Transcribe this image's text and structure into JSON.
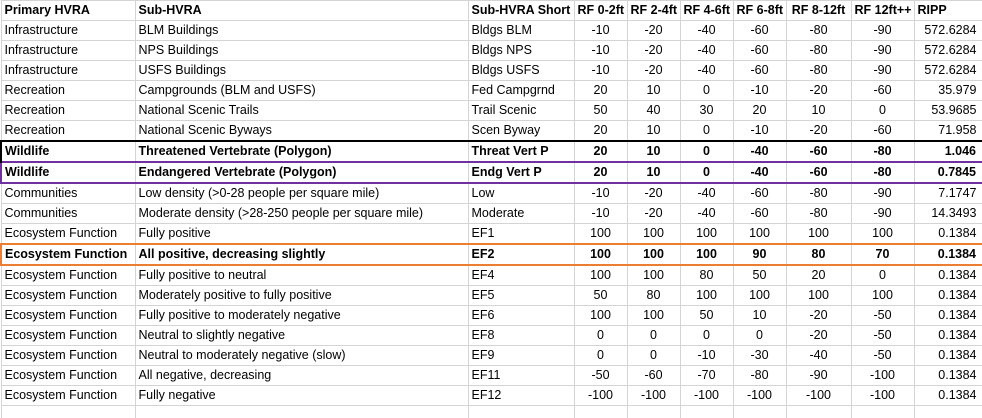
{
  "colors": {
    "gridline": "#d4d4d4",
    "box_black": "#000000",
    "box_purple": "#7030a0",
    "box_orange": "#ed7d31"
  },
  "headers": [
    "Primary HVRA",
    "Sub-HVRA",
    "Sub-HVRA Short",
    "RF 0-2ft",
    "RF 2-4ft",
    "RF 4-6ft",
    "RF 6-8ft",
    "RF 8-12ft",
    "RF 12ft++",
    "RIPP"
  ],
  "rows": [
    [
      "Infrastructure",
      "BLM Buildings",
      "Bldgs BLM",
      "-10",
      "-20",
      "-40",
      "-60",
      "-80",
      "-90",
      "572.6284"
    ],
    [
      "Infrastructure",
      "NPS Buildings",
      "Bldgs NPS",
      "-10",
      "-20",
      "-40",
      "-60",
      "-80",
      "-90",
      "572.6284"
    ],
    [
      "Infrastructure",
      "USFS Buildings",
      "Bldgs USFS",
      "-10",
      "-20",
      "-40",
      "-60",
      "-80",
      "-90",
      "572.6284"
    ],
    [
      "Recreation",
      "Campgrounds (BLM and USFS)",
      "Fed Campgrnd",
      "20",
      "10",
      "0",
      "-10",
      "-20",
      "-60",
      "35.979"
    ],
    [
      "Recreation",
      "National Scenic Trails",
      "Trail Scenic",
      "50",
      "40",
      "30",
      "20",
      "10",
      "0",
      "53.9685"
    ],
    [
      "Recreation",
      "National Scenic Byways",
      "Scen Byway",
      "20",
      "10",
      "0",
      "-10",
      "-20",
      "-60",
      "71.958"
    ],
    [
      "Wildlife",
      "Threatened Vertebrate (Polygon)",
      "Threat Vert P",
      "20",
      "10",
      "0",
      "-40",
      "-60",
      "-80",
      "1.046"
    ],
    [
      "Wildlife",
      "Endangered Vertebrate (Polygon)",
      "Endg Vert P",
      "20",
      "10",
      "0",
      "-40",
      "-60",
      "-80",
      "0.7845"
    ],
    [
      "Communities",
      "Low density (>0-28 people per square mile)",
      "Low",
      "-10",
      "-20",
      "-40",
      "-60",
      "-80",
      "-90",
      "7.1747"
    ],
    [
      "Communities",
      "Moderate density (>28-250 people per square mile)",
      "Moderate",
      "-10",
      "-20",
      "-40",
      "-60",
      "-80",
      "-90",
      "14.3493"
    ],
    [
      "Ecosystem Function",
      "Fully positive",
      "EF1",
      "100",
      "100",
      "100",
      "100",
      "100",
      "100",
      "0.1384"
    ],
    [
      "Ecosystem Function",
      "All positive, decreasing slightly",
      "EF2",
      "100",
      "100",
      "100",
      "90",
      "80",
      "70",
      "0.1384"
    ],
    [
      "Ecosystem Function",
      "Fully positive to neutral",
      "EF4",
      "100",
      "100",
      "80",
      "50",
      "20",
      "0",
      "0.1384"
    ],
    [
      "Ecosystem Function",
      "Moderately positive  to fully positive",
      "EF5",
      "50",
      "80",
      "100",
      "100",
      "100",
      "100",
      "0.1384"
    ],
    [
      "Ecosystem Function",
      "Fully positive to moderately negative",
      "EF6",
      "100",
      "100",
      "50",
      "10",
      "-20",
      "-50",
      "0.1384"
    ],
    [
      "Ecosystem Function",
      "Neutral to slightly negative",
      "EF8",
      "0",
      "0",
      "0",
      "0",
      "-20",
      "-50",
      "0.1384"
    ],
    [
      "Ecosystem Function",
      "Neutral to moderately negative (slow)",
      "EF9",
      "0",
      "0",
      "-10",
      "-30",
      "-40",
      "-50",
      "0.1384"
    ],
    [
      "Ecosystem Function",
      "All negative, decreasing",
      "EF11",
      "-50",
      "-60",
      "-70",
      "-80",
      "-90",
      "-100",
      "0.1384"
    ],
    [
      "Ecosystem Function",
      "Fully negative",
      "EF12",
      "-100",
      "-100",
      "-100",
      "-100",
      "-100",
      "-100",
      "0.1384"
    ],
    [
      "",
      "",
      "",
      "",
      "",
      "",
      "",
      "",
      "",
      ""
    ]
  ]
}
